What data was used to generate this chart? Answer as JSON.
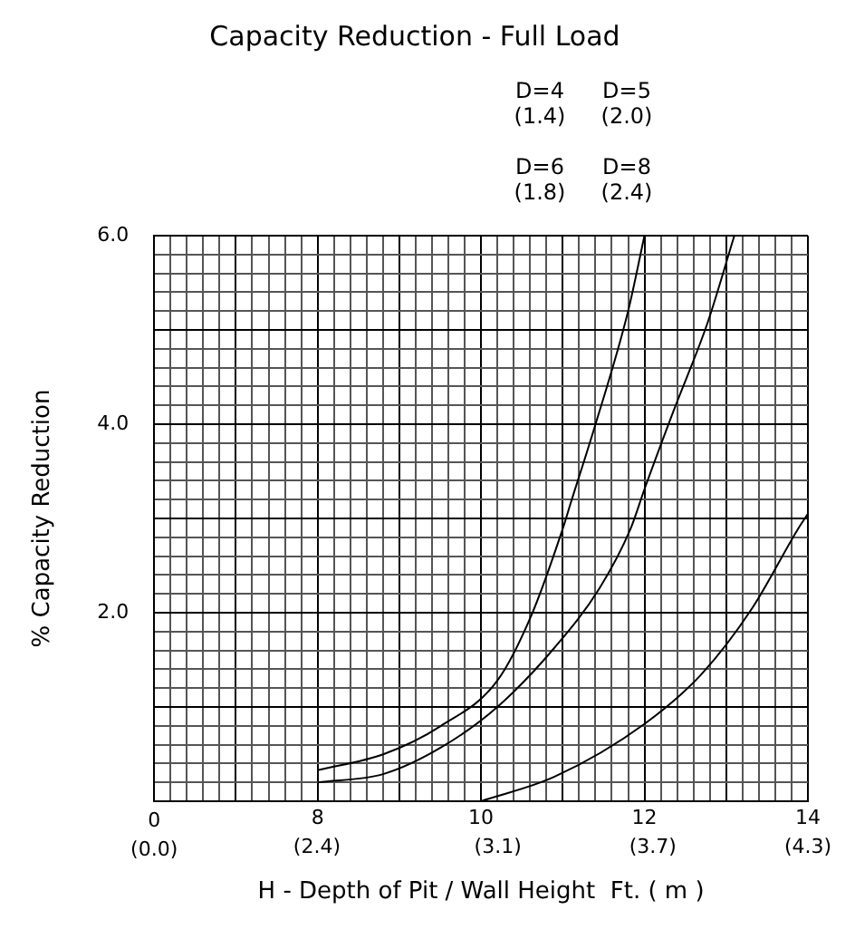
{
  "chart_data": {
    "type": "line",
    "title": "Capacity Reduction - Full Load",
    "xlabel": "H - Depth of Pit / Wall Height  Ft. ( m )",
    "ylabel": "% Capacity Reduction",
    "annotations": [
      "D=4 (1.4)",
      "D=5 (2.0)",
      "D=6 (1.8)",
      "D=8 (2.4)",
      "0 (0.0)"
    ],
    "series": [
      {
        "color": "#000000",
        "x": [
          8,
          8.81,
          9.51,
          10.2,
          10.62,
          11.0,
          11.1,
          11.38,
          11.8,
          12.0
        ],
        "values": [
          0.33,
          0.5,
          0.8,
          1.28,
          1.98,
          2.89,
          3.17,
          3.94,
          5.2,
          6.0
        ]
      },
      {
        "color": "#000000",
        "x": [
          8,
          8.81,
          9.51,
          10.2,
          10.9,
          11.45,
          11.83,
          12.0,
          12.36,
          12.77,
          13.1
        ],
        "values": [
          0.2,
          0.29,
          0.57,
          1.0,
          1.63,
          2.26,
          2.89,
          3.31,
          4.15,
          5.07,
          6.0
        ]
      },
      {
        "color": "#000000",
        "x": [
          10,
          10.9,
          12.0,
          12.7,
          13.32,
          13.88,
          14
        ],
        "values": [
          0,
          0.26,
          0.82,
          1.35,
          2.05,
          2.89,
          3.05
        ]
      }
    ],
    "xlim": [
      6,
      14
    ],
    "x2lim": [
      1.77,
      4.3
    ],
    "x2ticks": [
      {
        "value": 2.4,
        "label": "(2.4)"
      },
      {
        "value": 3.1,
        "label": "(3.1)"
      },
      {
        "value": 3.7,
        "label": "(3.7)"
      },
      {
        "value": 4.3,
        "label": "(4.3)"
      }
    ],
    "xticks": [
      {
        "value": 6,
        "label": null
      },
      {
        "value": 6.2,
        "label": null
      },
      {
        "value": 6.4,
        "label": null
      },
      {
        "value": 6.6,
        "label": null
      },
      {
        "value": 6.8,
        "label": null
      },
      {
        "value": 7,
        "label": null
      },
      {
        "value": 7.2,
        "label": null
      },
      {
        "value": 7.4,
        "label": null
      },
      {
        "value": 7.6,
        "label": null
      },
      {
        "value": 7.8,
        "label": null
      },
      8,
      {
        "value": 8.2,
        "label": null
      },
      {
        "value": 8.4,
        "label": null
      },
      {
        "value": 8.6,
        "label": null
      },
      {
        "value": 8.8,
        "label": null
      },
      {
        "value": 9,
        "label": null
      },
      {
        "value": 9.2,
        "label": null
      },
      {
        "value": 9.4,
        "label": null
      },
      {
        "value": 9.6,
        "label": null
      },
      {
        "value": 9.8,
        "label": null
      },
      10,
      {
        "value": 10.2,
        "label": null
      },
      {
        "value": 10.4,
        "label": null
      },
      {
        "value": 10.6,
        "label": null
      },
      {
        "value": 10.8,
        "label": null
      },
      {
        "value": 11,
        "label": null
      },
      {
        "value": 11.2,
        "label": null
      },
      {
        "value": 11.4,
        "label": null
      },
      {
        "value": 11.6,
        "label": null
      },
      {
        "value": 11.8,
        "label": null
      },
      12,
      {
        "value": 12.2,
        "label": null
      },
      {
        "value": 12.4,
        "label": null
      },
      {
        "value": 12.6,
        "label": null
      },
      {
        "value": 12.8,
        "label": null
      },
      {
        "value": 13,
        "label": null
      },
      {
        "value": 13.2,
        "label": null
      },
      {
        "value": 13.4,
        "label": null
      },
      {
        "value": 13.6,
        "label": null
      },
      {
        "value": 13.8,
        "label": null
      },
      14
    ],
    "ylim": [
      0,
      6
    ],
    "yticks": [
      {
        "value": 0,
        "label": null
      },
      {
        "value": 0.2,
        "label": null
      },
      {
        "value": 0.4,
        "label": null
      },
      {
        "value": 0.6,
        "label": null
      },
      {
        "value": 0.8,
        "label": null
      },
      {
        "value": 1,
        "label": null
      },
      {
        "value": 1.2,
        "label": null
      },
      {
        "value": 1.4,
        "label": null
      },
      {
        "value": 1.6,
        "label": null
      },
      {
        "value": 1.8,
        "label": null
      },
      {
        "value": 2,
        "label": "2.0"
      },
      {
        "value": 2.2,
        "label": null
      },
      {
        "value": 2.4,
        "label": null
      },
      {
        "value": 2.6,
        "label": null
      },
      {
        "value": 2.8,
        "label": null
      },
      {
        "value": 3,
        "label": null
      },
      {
        "value": 3.2,
        "label": null
      },
      {
        "value": 3.4,
        "label": null
      },
      {
        "value": 3.6,
        "label": null
      },
      {
        "value": 3.8,
        "label": null
      },
      {
        "value": 4,
        "label": "4.0"
      },
      {
        "value": 4.2,
        "label": null
      },
      {
        "value": 4.4,
        "label": null
      },
      {
        "value": 4.6,
        "label": null
      },
      {
        "value": 4.8,
        "label": null
      },
      {
        "value": 5,
        "label": null
      },
      {
        "value": 5.2,
        "label": null
      },
      {
        "value": 5.4,
        "label": null
      },
      {
        "value": 5.6,
        "label": null
      },
      {
        "value": 5.8,
        "label": null
      },
      {
        "value": 6,
        "label": "6.0"
      }
    ],
    "grid": true,
    "legend": false,
    "marker": "none",
    "line_style": "solid"
  }
}
